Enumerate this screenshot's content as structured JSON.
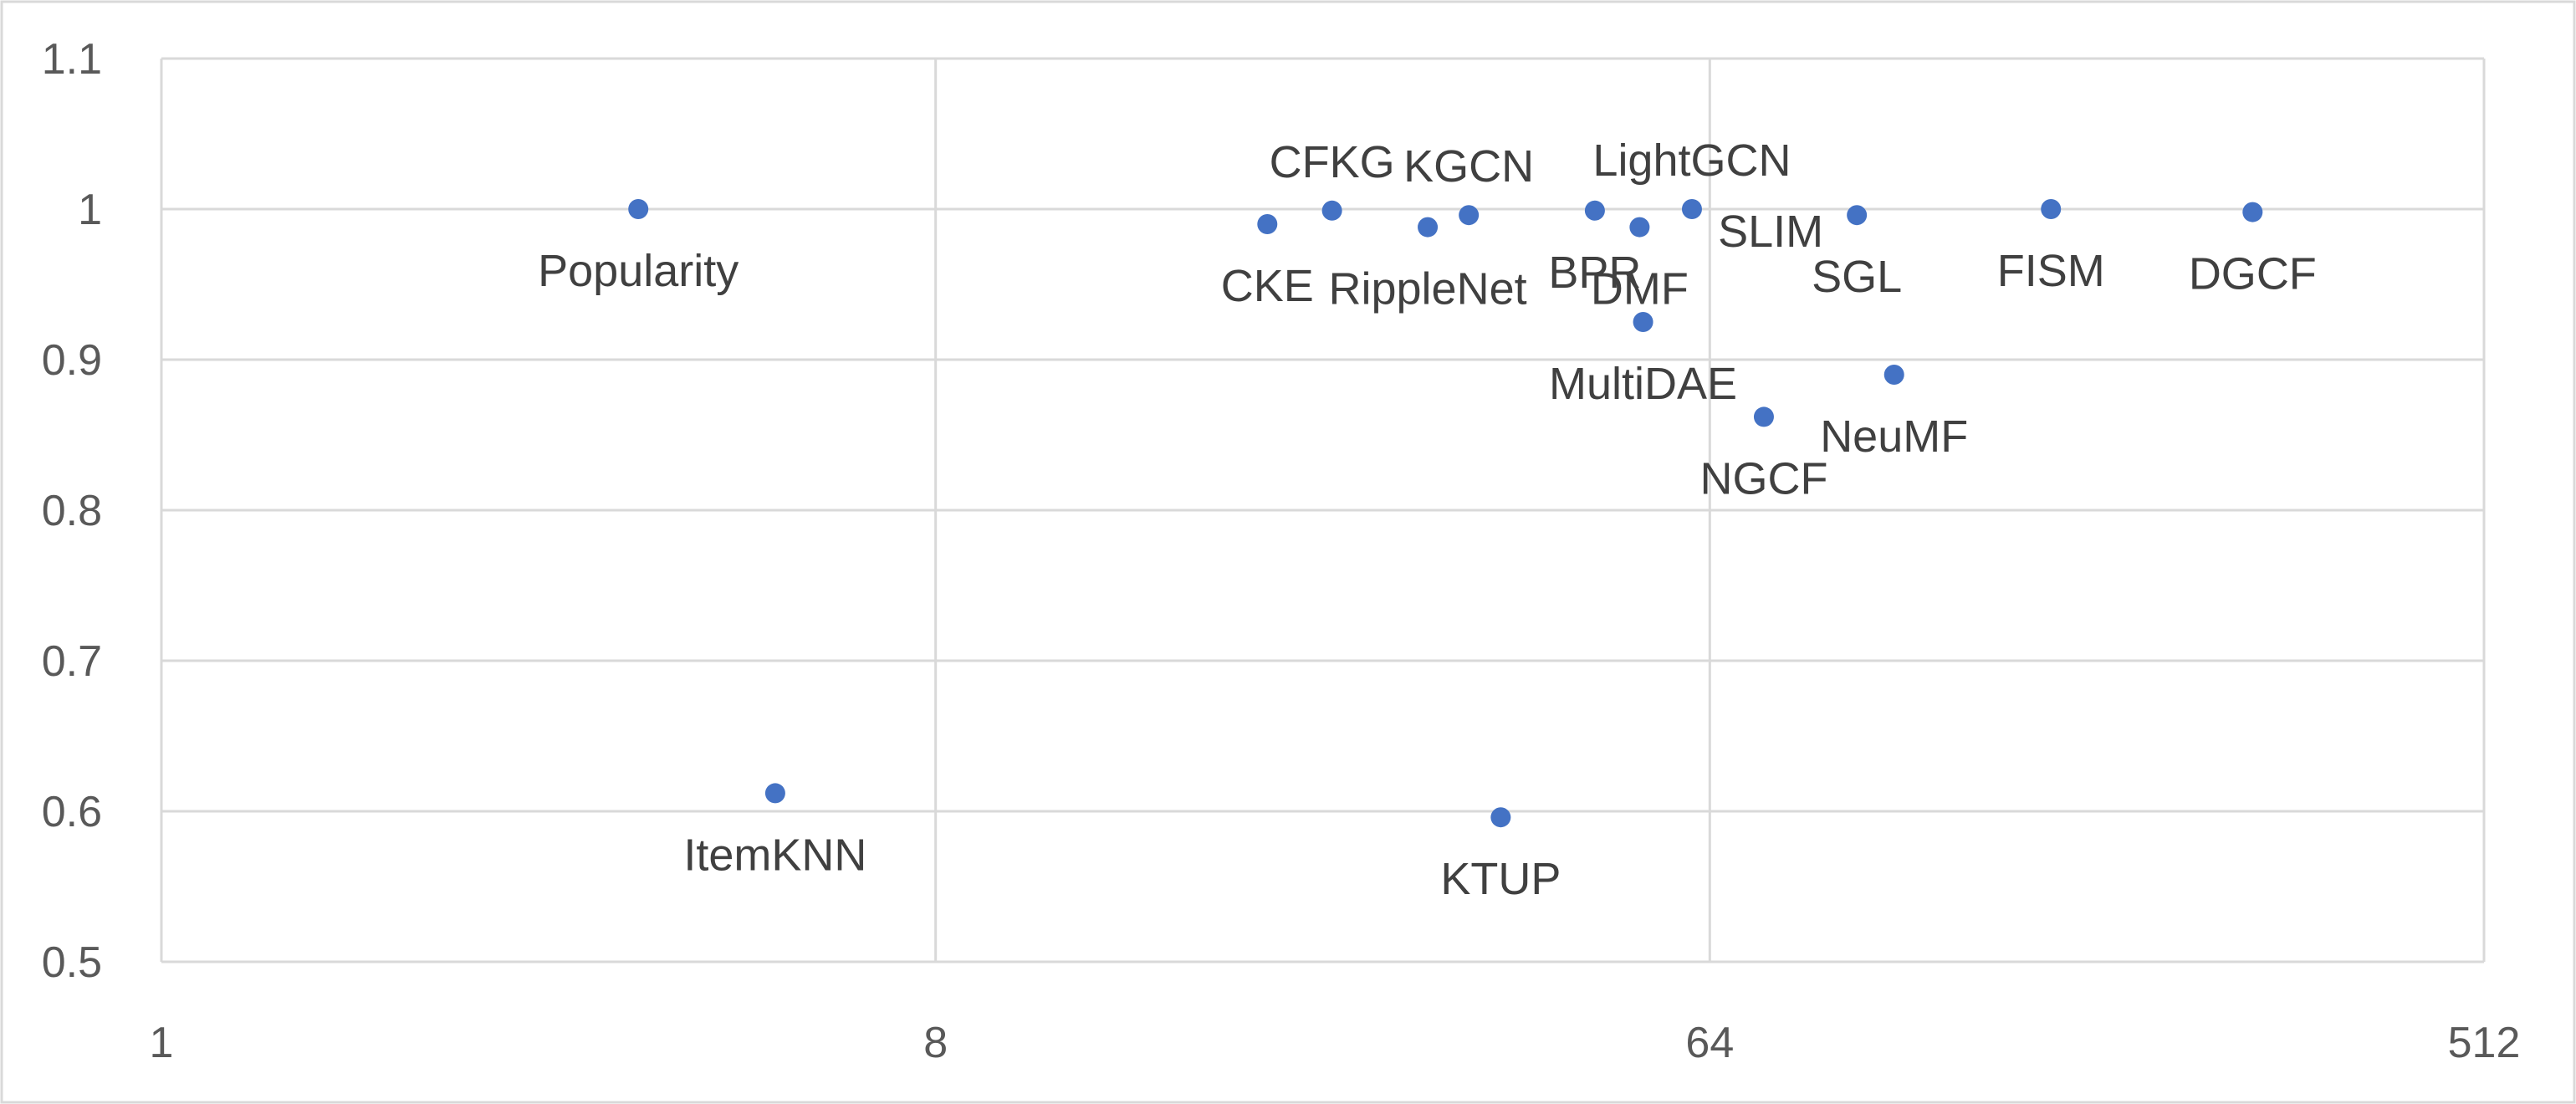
{
  "chart_data": {
    "type": "scatter",
    "x_scale": "log2",
    "xlim": [
      1,
      512
    ],
    "ylim": [
      0.5,
      1.1
    ],
    "x_ticks": [
      "1",
      "8",
      "64",
      "512"
    ],
    "y_ticks": [
      "0.5",
      "0.6",
      "0.7",
      "0.8",
      "0.9",
      "1",
      "1.1"
    ],
    "grid": true,
    "points": [
      {
        "label": "Popularity",
        "x": 3.6,
        "y": 1.0,
        "label_pos": "below"
      },
      {
        "label": "ItemKNN",
        "x": 5.2,
        "y": 0.612,
        "label_pos": "below"
      },
      {
        "label": "CKE",
        "x": 19.5,
        "y": 0.99,
        "label_pos": "below"
      },
      {
        "label": "CFKG",
        "x": 23.2,
        "y": 0.999,
        "label_pos": "above"
      },
      {
        "label": "RippleNet",
        "x": 30.0,
        "y": 0.988,
        "label_pos": "below"
      },
      {
        "label": "KGCN",
        "x": 33.5,
        "y": 0.996,
        "label_pos": "above"
      },
      {
        "label": "KTUP",
        "x": 36.5,
        "y": 0.596,
        "label_pos": "below"
      },
      {
        "label": "BPR",
        "x": 47.0,
        "y": 0.999,
        "label_pos": "below"
      },
      {
        "label": "LightGCN",
        "x": 61.0,
        "y": 1.0,
        "label_pos": "above"
      },
      {
        "label": "DMF",
        "x": 53.0,
        "y": 0.988,
        "label_pos": "below"
      },
      {
        "label": "MultiDAE",
        "x": 53.5,
        "y": 0.925,
        "label_pos": "below"
      },
      {
        "label": "NGCF",
        "x": 74.0,
        "y": 0.862,
        "label_pos": "below"
      },
      {
        "label": "SLIM",
        "x": 95.0,
        "y": 0.996,
        "label_pos": "left"
      },
      {
        "label": "SGL",
        "x": 95.0,
        "y": 0.996,
        "label_pos": "below"
      },
      {
        "label": "NeuMF",
        "x": 105.0,
        "y": 0.89,
        "label_pos": "below"
      },
      {
        "label": "FISM",
        "x": 160.0,
        "y": 1.0,
        "label_pos": "below"
      },
      {
        "label": "DGCF",
        "x": 275.0,
        "y": 0.998,
        "label_pos": "below"
      }
    ]
  }
}
